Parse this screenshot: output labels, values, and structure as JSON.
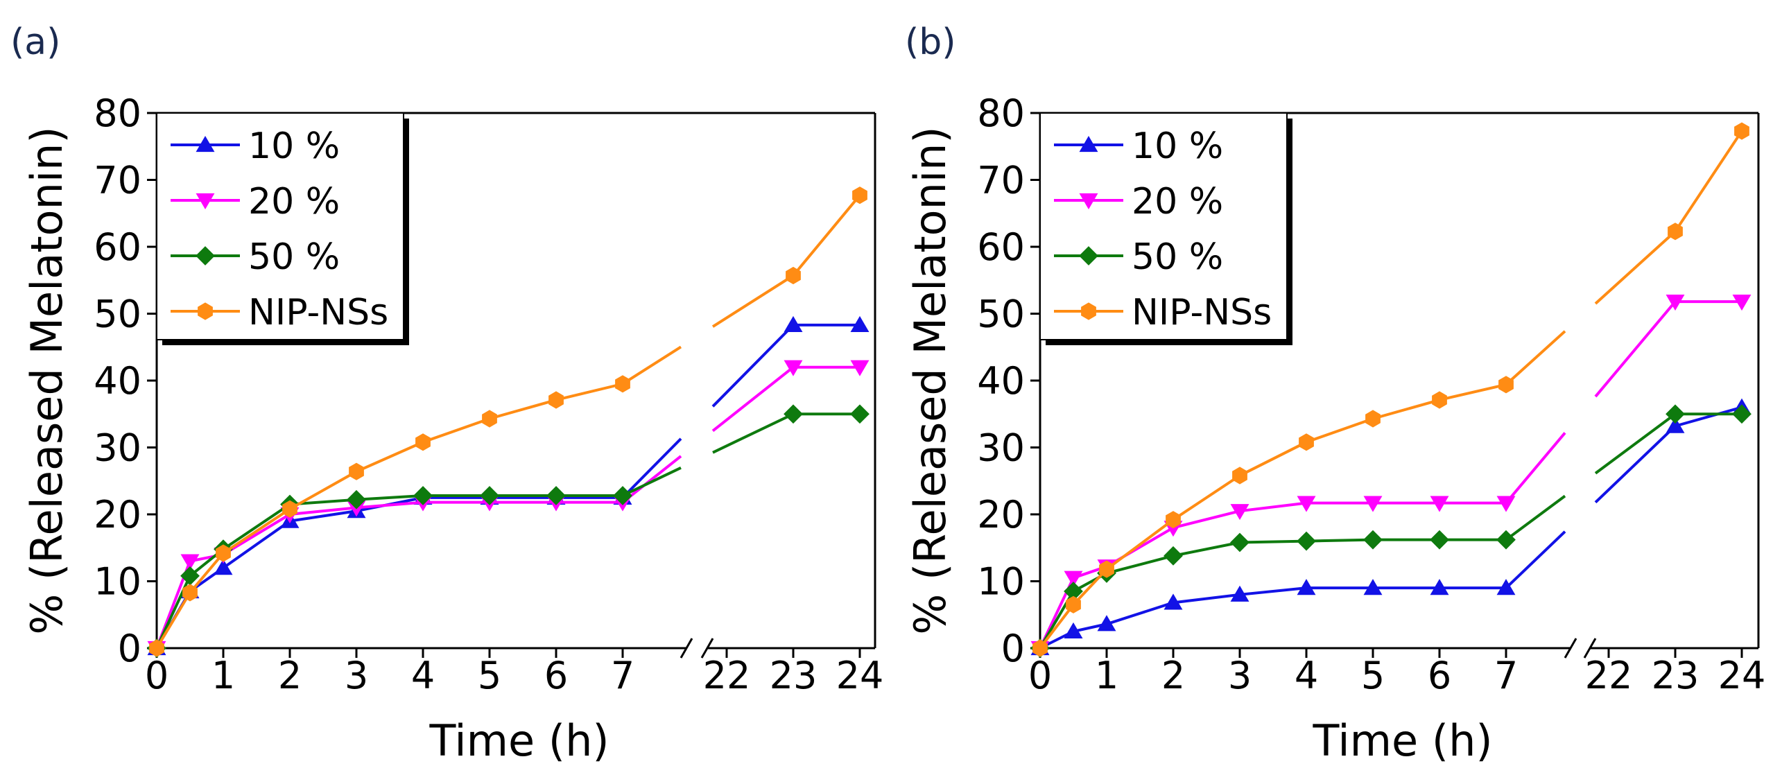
{
  "figure": {
    "panels": [
      "(a)",
      "(b)"
    ]
  },
  "colors": {
    "10 %": "#1212e6",
    "20 %": "#ff00ff",
    "50 %": "#0e7a0e",
    "NIP-NSs": "#ff8c14",
    "axis": "#000000",
    "panel_label": "#1a2a50"
  },
  "chart_data": [
    {
      "panel": "(a)",
      "type": "line",
      "xlabel": "Time (h)",
      "ylabel": "% (Released Melatonin)",
      "ylim": [
        0,
        80
      ],
      "yticks": [
        0,
        10,
        20,
        30,
        40,
        50,
        60,
        70,
        80
      ],
      "xticks": [
        "0",
        "1",
        "2",
        "3",
        "4",
        "5",
        "6",
        "7",
        "22",
        "23",
        "24"
      ],
      "axis_break": "between 7 and 22",
      "legend_position": "top-left",
      "series": [
        {
          "name": "10 %",
          "marker": "triangle-up",
          "x": [
            0,
            0.5,
            1,
            2,
            3,
            4,
            5,
            6,
            7,
            23,
            24
          ],
          "y": [
            0,
            8.5,
            12,
            19,
            20.5,
            22.5,
            22.5,
            22.5,
            22.5,
            48.3,
            48.3
          ]
        },
        {
          "name": "20 %",
          "marker": "triangle-down",
          "x": [
            0,
            0.5,
            1,
            2,
            3,
            4,
            5,
            6,
            7,
            23,
            24
          ],
          "y": [
            0,
            13,
            14,
            20,
            21,
            21.8,
            21.8,
            21.8,
            21.8,
            42,
            42
          ]
        },
        {
          "name": "50 %",
          "marker": "diamond",
          "x": [
            0,
            0.5,
            1,
            2,
            3,
            4,
            5,
            6,
            7,
            23,
            24
          ],
          "y": [
            0,
            10.8,
            14.8,
            21.5,
            22.2,
            22.8,
            22.8,
            22.8,
            22.8,
            35,
            35
          ]
        },
        {
          "name": "NIP-NSs",
          "marker": "hexagon",
          "x": [
            0,
            0.5,
            1,
            2,
            3,
            4,
            5,
            6,
            7,
            23,
            24
          ],
          "y": [
            0,
            8.3,
            14.2,
            20.8,
            26.4,
            30.8,
            34.3,
            37.1,
            39.5,
            55.7,
            67.7
          ]
        }
      ]
    },
    {
      "panel": "(b)",
      "type": "line",
      "xlabel": "Time (h)",
      "ylabel": "% (Released Melatonin)",
      "ylim": [
        0,
        80
      ],
      "yticks": [
        0,
        10,
        20,
        30,
        40,
        50,
        60,
        70,
        80
      ],
      "xticks": [
        "0",
        "1",
        "2",
        "3",
        "4",
        "5",
        "6",
        "7",
        "22",
        "23",
        "24"
      ],
      "axis_break": "between 7 and 22",
      "legend_position": "top-left",
      "series": [
        {
          "name": "10 %",
          "marker": "triangle-up",
          "x": [
            0,
            0.5,
            1,
            2,
            3,
            4,
            5,
            6,
            7,
            23,
            24
          ],
          "y": [
            0,
            2.5,
            3.6,
            6.8,
            8,
            9,
            9,
            9,
            9,
            33.2,
            36
          ]
        },
        {
          "name": "20 %",
          "marker": "triangle-down",
          "x": [
            0,
            0.5,
            1,
            2,
            3,
            4,
            5,
            6,
            7,
            23,
            24
          ],
          "y": [
            0,
            10.5,
            12.2,
            18,
            20.5,
            21.7,
            21.7,
            21.7,
            21.7,
            51.8,
            51.8
          ]
        },
        {
          "name": "50 %",
          "marker": "diamond",
          "x": [
            0,
            0.5,
            1,
            2,
            3,
            4,
            5,
            6,
            7,
            23,
            24
          ],
          "y": [
            0,
            8.5,
            11.2,
            13.8,
            15.8,
            16,
            16.2,
            16.2,
            16.2,
            35,
            35
          ]
        },
        {
          "name": "NIP-NSs",
          "marker": "hexagon",
          "x": [
            0,
            0.5,
            1,
            2,
            3,
            4,
            5,
            6,
            7,
            23,
            24
          ],
          "y": [
            0,
            6.5,
            11.8,
            19.2,
            25.8,
            30.8,
            34.3,
            37.1,
            39.4,
            62.3,
            77.3
          ]
        }
      ]
    }
  ]
}
